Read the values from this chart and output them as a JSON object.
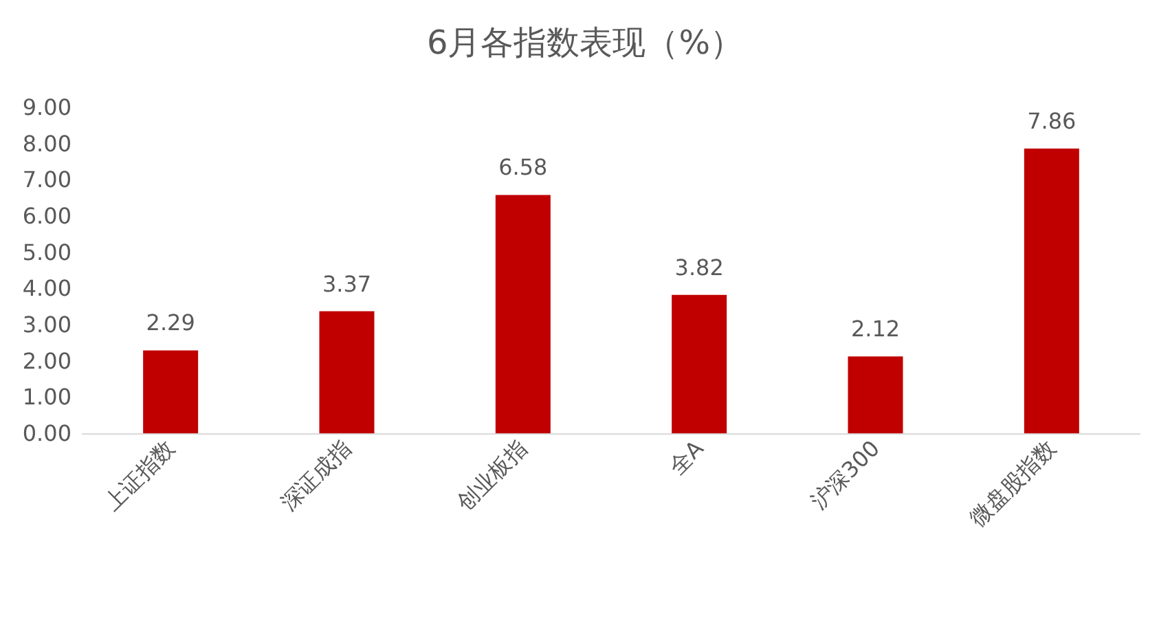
{
  "chart_data": {
    "type": "bar",
    "title": "6月各指数表现（%）",
    "categories": [
      "上证指数",
      "深证成指",
      "创业板指",
      "全A",
      "沪深300",
      "微盘股指数"
    ],
    "values": [
      2.29,
      3.37,
      6.58,
      3.82,
      2.12,
      7.86
    ],
    "color": "#c00000",
    "ylim": [
      0,
      9
    ],
    "yticks": [
      {
        "value": 0,
        "label": "0.00"
      },
      {
        "value": 1,
        "label": "1.00"
      },
      {
        "value": 2,
        "label": "2.00"
      },
      {
        "value": 3,
        "label": "3.00"
      },
      {
        "value": 4,
        "label": "4.00"
      },
      {
        "value": 5,
        "label": "5.00"
      },
      {
        "value": 6,
        "label": "6.00"
      },
      {
        "value": 7,
        "label": "7.00"
      },
      {
        "value": 8,
        "label": "8.00"
      },
      {
        "value": 9,
        "label": "9.00"
      }
    ],
    "data_labels": true
  }
}
